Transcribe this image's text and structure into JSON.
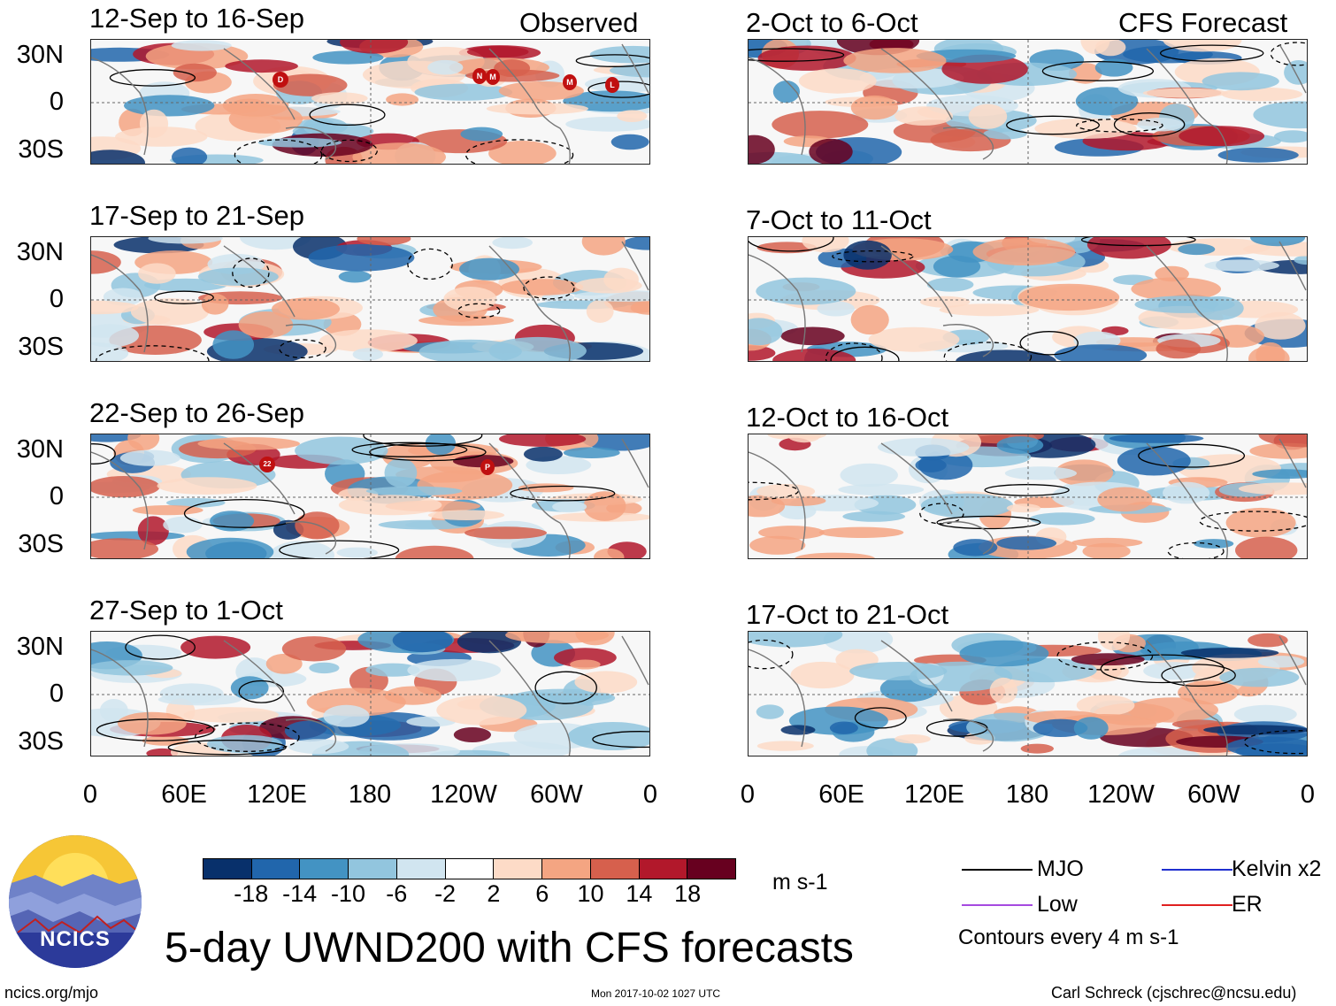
{
  "figure": {
    "title": "5-day UWND200 with CFS forecasts",
    "observed_label": "Observed",
    "forecast_label": "CFS Forecast",
    "units": "m s-1",
    "contour_note": "Contours every 4 m s-1",
    "url": "ncics.org/mjo",
    "timestamp": "Mon 2017-10-02 1027 UTC",
    "author": "Carl Schreck (cjschrec@ncsu.edu)",
    "logo_text": "NCICS"
  },
  "panels_observed": [
    {
      "title": "12-Sep to 16-Sep"
    },
    {
      "title": "17-Sep to 21-Sep"
    },
    {
      "title": "22-Sep to 26-Sep"
    },
    {
      "title": "27-Sep to 1-Oct"
    }
  ],
  "panels_forecast": [
    {
      "title": "2-Oct to 6-Oct"
    },
    {
      "title": "7-Oct to 11-Oct"
    },
    {
      "title": "12-Oct to 16-Oct"
    },
    {
      "title": "17-Oct to 21-Oct"
    }
  ],
  "lat_labels": [
    "30N",
    "0",
    "30S"
  ],
  "lon_labels": [
    "0",
    "60E",
    "120E",
    "180",
    "120W",
    "60W",
    "0"
  ],
  "colorbar": {
    "ticks": [
      "-18",
      "-14",
      "-10",
      "-6",
      "-2",
      "2",
      "6",
      "10",
      "14",
      "18"
    ],
    "colors": [
      "#08306b",
      "#2166ac",
      "#4393c3",
      "#92c5de",
      "#d1e5f0",
      "#ffffff",
      "#fddbc7",
      "#f4a582",
      "#d6604d",
      "#b2182b",
      "#67001f"
    ]
  },
  "legend": [
    {
      "label": "MJO",
      "color": "#000000"
    },
    {
      "label": "Kelvin x2",
      "color": "#1f2fd0"
    },
    {
      "label": "Low",
      "color": "#a64ae0"
    },
    {
      "label": "ER",
      "color": "#e02020"
    }
  ],
  "storm_markers": {
    "p0": [
      "D",
      "N",
      "M",
      "M",
      "L"
    ],
    "p2": [
      "22",
      "P"
    ]
  }
}
